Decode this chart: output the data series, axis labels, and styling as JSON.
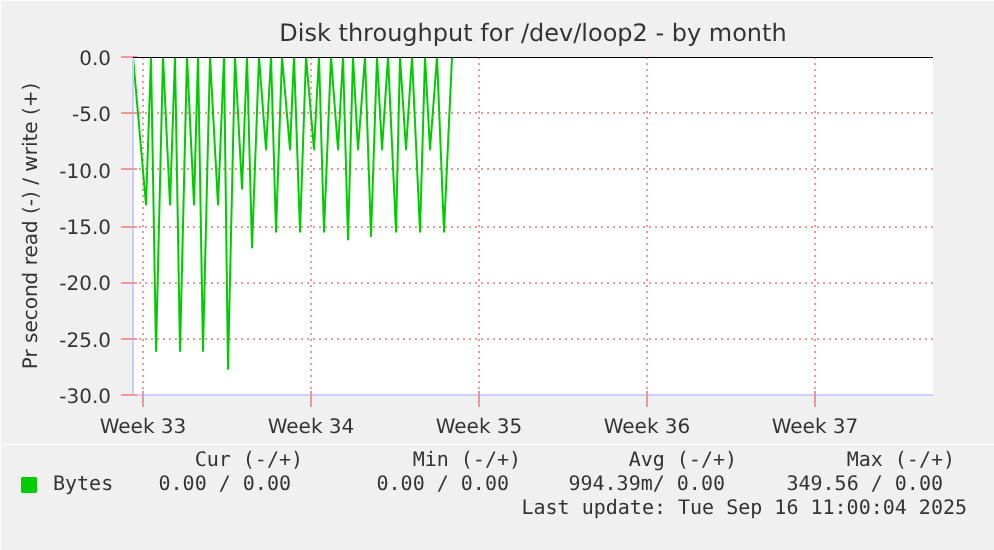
{
  "chart_data": {
    "type": "line",
    "title": "Disk throughput for /dev/loop2 - by month",
    "ylabel": "Pr second read (-) / write (+)",
    "x": [
      "2025-08-10T14:00",
      "2025-08-11T03:00",
      "2025-08-11T08:00",
      "2025-08-11T13:00",
      "2025-08-11T20:00",
      "2025-08-12T03:00",
      "2025-08-12T08:00",
      "2025-08-12T13:00",
      "2025-08-12T20:00",
      "2025-08-13T03:00",
      "2025-08-13T07:00",
      "2025-08-13T12:00",
      "2025-08-13T19:00",
      "2025-08-14T03:00",
      "2025-08-14T09:00",
      "2025-08-14T13:00",
      "2025-08-14T20:00",
      "2025-08-15T03:00",
      "2025-08-15T08:00",
      "2025-08-15T13:00",
      "2025-08-15T20:00",
      "2025-08-16T03:00",
      "2025-08-16T08:00",
      "2025-08-16T13:00",
      "2025-08-16T19:00",
      "2025-08-17T03:00",
      "2025-08-17T07:00",
      "2025-08-17T13:00",
      "2025-08-17T19:00",
      "2025-08-18T03:00",
      "2025-08-18T08:00",
      "2025-08-18T13:00",
      "2025-08-18T20:00",
      "2025-08-19T03:00",
      "2025-08-19T08:00",
      "2025-08-19T13:00",
      "2025-08-19T18:00",
      "2025-08-19T23:00",
      "2025-08-20T06:00",
      "2025-08-20T12:00",
      "2025-08-20T18:00",
      "2025-08-20T23:00",
      "2025-08-21T05:00",
      "2025-08-21T13:00",
      "2025-08-21T17:00",
      "2025-08-21T23:00",
      "2025-08-22T05:00",
      "2025-08-22T13:00",
      "2025-08-22T18:00",
      "2025-08-22T23:00",
      "2025-08-23T06:00",
      "2025-08-23T13:00",
      "2025-08-23T21:00"
    ],
    "series": [
      {
        "name": "Bytes",
        "color": "#00cc00",
        "values": [
          0,
          -13.1,
          0,
          -26.1,
          0,
          -13.1,
          0,
          -26.1,
          0,
          -13.1,
          0,
          -26.1,
          0,
          -13.1,
          0,
          -27.7,
          0,
          -11.7,
          0,
          -16.9,
          0,
          -8.2,
          0,
          -15.5,
          0,
          -8.2,
          0,
          -15.5,
          0,
          -8.2,
          0,
          -15.5,
          0,
          -8.2,
          0,
          -16.2,
          0,
          -8.2,
          0,
          -15.9,
          0,
          -8.2,
          0,
          -15.5,
          0,
          -8.2,
          0,
          -15.5,
          0,
          -8.2,
          0,
          -15.5,
          0
        ]
      }
    ],
    "xlim": [
      "2025-08-10T14:00",
      "2025-09-12T22:00"
    ],
    "ylim": [
      -30,
      0
    ],
    "xticks": [
      {
        "value": "2025-08-11",
        "label": "Week 33"
      },
      {
        "value": "2025-08-18",
        "label": "Week 34"
      },
      {
        "value": "2025-08-25",
        "label": "Week 35"
      },
      {
        "value": "2025-09-01",
        "label": "Week 36"
      },
      {
        "value": "2025-09-08",
        "label": "Week 37"
      }
    ],
    "yticks": [
      {
        "value": 0,
        "label": "0.0"
      },
      {
        "value": -5,
        "label": "-5.0"
      },
      {
        "value": -10,
        "label": "-10.0"
      },
      {
        "value": -15,
        "label": "-15.0"
      },
      {
        "value": -20,
        "label": "-20.0"
      },
      {
        "value": -25,
        "label": "-25.0"
      },
      {
        "value": -30,
        "label": "-30.0"
      }
    ],
    "grid": true,
    "legend": "bottom left",
    "annotations": [
      "Cur (-/+)",
      "Min (-/+)",
      "Avg (-/+)",
      "Max (-/+)",
      "0.00 /  0.00",
      "0.00 /  0.00",
      "994.39m/  0.00",
      "349.56 /  0.00",
      "Last update: Tue Sep 16 11:00:04 2025"
    ]
  }
}
